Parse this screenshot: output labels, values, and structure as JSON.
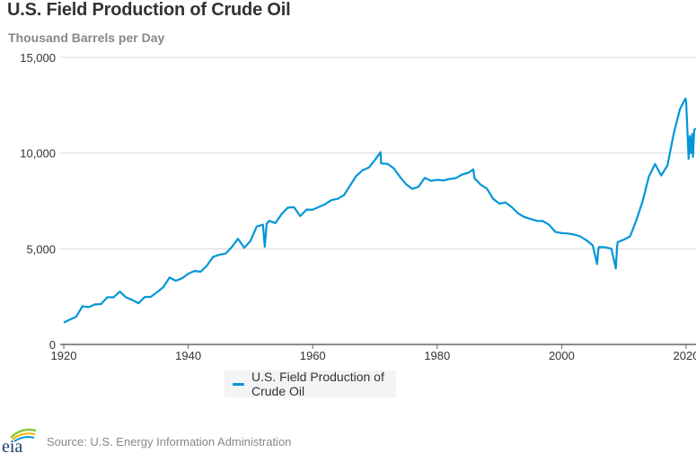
{
  "chart_data": {
    "type": "line",
    "title": "U.S. Field Production of Crude Oil",
    "ylabel": "Thousand Barrels per Day",
    "xlim": [
      1920,
      2021.5
    ],
    "ylim": [
      0,
      15000
    ],
    "xticks": [
      "1920",
      "1940",
      "1960",
      "1980",
      "2000",
      "2020"
    ],
    "yticks": [
      "0",
      "5,000",
      "10,000",
      "15,000"
    ],
    "grid": true,
    "legend_position": "bottom-center",
    "color": "#0096d7",
    "series": [
      {
        "name": "U.S. Field Production of Crude Oil",
        "x": [
          1920,
          1921,
          1922,
          1923,
          1924,
          1925,
          1926,
          1927,
          1928,
          1929,
          1930,
          1931,
          1932,
          1933,
          1934,
          1935,
          1936,
          1937,
          1938,
          1939,
          1940,
          1941,
          1942,
          1943,
          1944,
          1945,
          1946,
          1947,
          1948,
          1949,
          1950,
          1951,
          1952,
          1952.3,
          1952.6,
          1953,
          1954,
          1955,
          1956,
          1957,
          1958,
          1959,
          1960,
          1961,
          1962,
          1963,
          1964,
          1965,
          1966,
          1967,
          1968,
          1969,
          1970,
          1970.9,
          1971,
          1972,
          1973,
          1974,
          1975,
          1976,
          1977,
          1978,
          1979,
          1980,
          1981,
          1982,
          1983,
          1984,
          1985,
          1985.8,
          1986,
          1987,
          1988,
          1989,
          1990,
          1991,
          1992,
          1993,
          1994,
          1995,
          1996,
          1997,
          1998,
          1999,
          2000,
          2001,
          2002,
          2003,
          2004,
          2005,
          2005.7,
          2005.9,
          2006,
          2007,
          2008,
          2008.7,
          2008.9,
          2009,
          2010,
          2011,
          2012,
          2013,
          2014,
          2015,
          2016,
          2017,
          2018,
          2019,
          2019.9,
          2020,
          2020.4,
          2020.6,
          2020.8,
          2021,
          2021.1,
          2021.3,
          2021.5
        ],
        "values": [
          1150,
          1300,
          1450,
          2000,
          1950,
          2090,
          2110,
          2470,
          2460,
          2760,
          2460,
          2330,
          2150,
          2480,
          2490,
          2730,
          3000,
          3500,
          3330,
          3460,
          3700,
          3840,
          3800,
          4120,
          4580,
          4690,
          4750,
          5090,
          5520,
          5050,
          5410,
          6160,
          6260,
          5100,
          6300,
          6460,
          6340,
          6810,
          7150,
          7170,
          6710,
          7050,
          7040,
          7180,
          7330,
          7540,
          7610,
          7800,
          8300,
          8810,
          9100,
          9240,
          9640,
          10044,
          9460,
          9440,
          9210,
          8770,
          8370,
          8130,
          8240,
          8710,
          8550,
          8600,
          8570,
          8650,
          8690,
          8880,
          8970,
          9150,
          8680,
          8350,
          8140,
          7610,
          7360,
          7420,
          7170,
          6850,
          6660,
          6560,
          6460,
          6450,
          6250,
          5880,
          5820,
          5800,
          5740,
          5650,
          5440,
          5180,
          4200,
          5000,
          5090,
          5080,
          5000,
          3970,
          5100,
          5350,
          5480,
          5650,
          6500,
          7470,
          8760,
          9430,
          8830,
          9350,
          10990,
          12290,
          12860,
          12700,
          9700,
          10900,
          10000,
          11000,
          9800,
          11200,
          11300
        ]
      }
    ]
  },
  "legend": {
    "label": "U.S. Field Production of Crude Oil"
  },
  "footer": {
    "source": "Source: U.S. Energy Information Administration",
    "logo_text": "eia"
  }
}
